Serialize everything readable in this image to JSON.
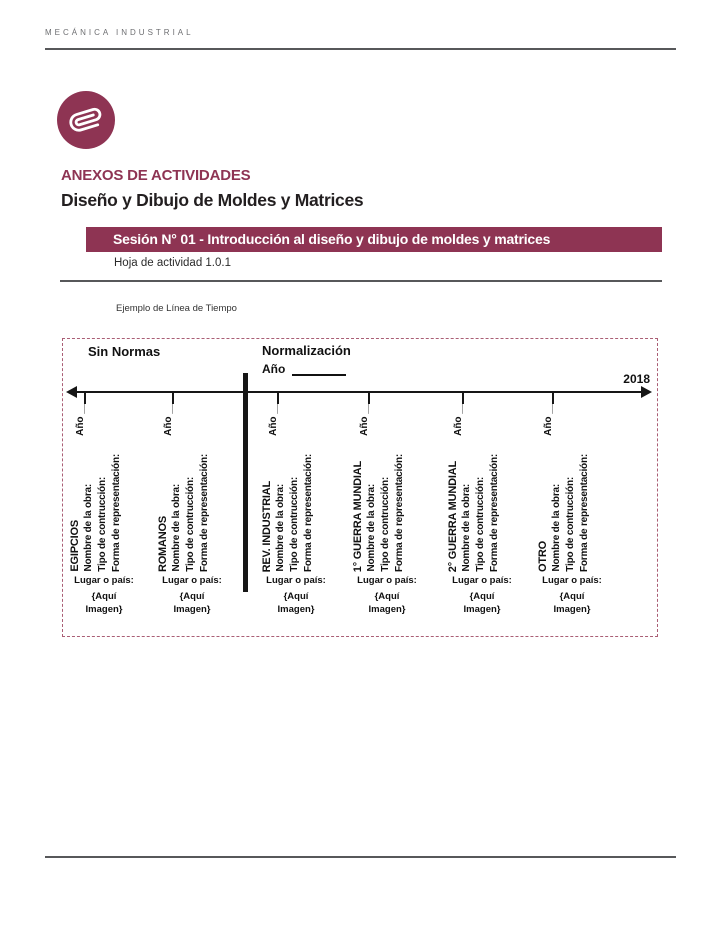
{
  "page": {
    "header_label": "MECÁNICA INDUSTRIAL",
    "section_title": "ANEXOS DE ACTIVIDADES",
    "doc_title": "Diseño y Dibujo de Moldes y Matrices",
    "session_banner": "Sesión N° 01 - Introducción al diseño y dibujo de moldes y matrices",
    "activity_sheet": "Hoja de actividad 1.0.1",
    "example_caption": "Ejemplo de Línea de Tiempo"
  },
  "colors": {
    "maroon": "#8e3453",
    "dashed_border": "#aa5e75",
    "rule_gray": "#57585a",
    "ink": "#161616"
  },
  "icons": {
    "badge": "paperclip-icon"
  },
  "timeline": {
    "left_zone_label": "Sin Normas",
    "right_zone_label": "Normalización",
    "right_zone_year_label": "Año",
    "end_year": "2018",
    "columns": [
      {
        "title": "EGIPCIOS",
        "year_label": "Año ___",
        "fields": [
          "Nombre de la obra:",
          "Tipo de contrucción:",
          "Forma de representación:"
        ],
        "place_label": "Lugar o país:",
        "image_placeholder": [
          "{Aquí",
          "Imagen}"
        ]
      },
      {
        "title": "ROMANOS",
        "year_label": "Año ___",
        "fields": [
          "Nombre de la obra:",
          "Tipo de contrucción:",
          "Forma de representación:"
        ],
        "place_label": "Lugar o país:",
        "image_placeholder": [
          "{Aquí",
          "Imagen}"
        ]
      },
      {
        "title": "REV. INDUSTRIAL",
        "year_label": "Año ___",
        "fields": [
          "Nombre de la obra:",
          "Tipo de contrucción:",
          "Forma de representación:"
        ],
        "place_label": "Lugar o país:",
        "image_placeholder": [
          "{Aquí",
          "Imagen}"
        ]
      },
      {
        "title": "1° GUERRA MUNDIAL",
        "year_label": "Año ___",
        "fields": [
          "Nombre de la obra:",
          "Tipo de contrucción:",
          "Forma de representación:"
        ],
        "place_label": "Lugar o país:",
        "image_placeholder": [
          "{Aquí",
          "Imagen}"
        ]
      },
      {
        "title": "2° GUERRA MUNDIAL",
        "year_label": "Año ___",
        "fields": [
          "Nombre de la obra:",
          "Tipo de contrucción:",
          "Forma de representación:"
        ],
        "place_label": "Lugar o país:",
        "image_placeholder": [
          "{Aquí",
          "Imagen}"
        ]
      },
      {
        "title": "OTRO",
        "year_label": "Año ___",
        "fields": [
          "Nombre de la obra:",
          "Tipo de contrucción:",
          "Forma de representación:"
        ],
        "place_label": "Lugar o país:",
        "image_placeholder": [
          "{Aquí",
          "Imagen}"
        ]
      }
    ]
  }
}
